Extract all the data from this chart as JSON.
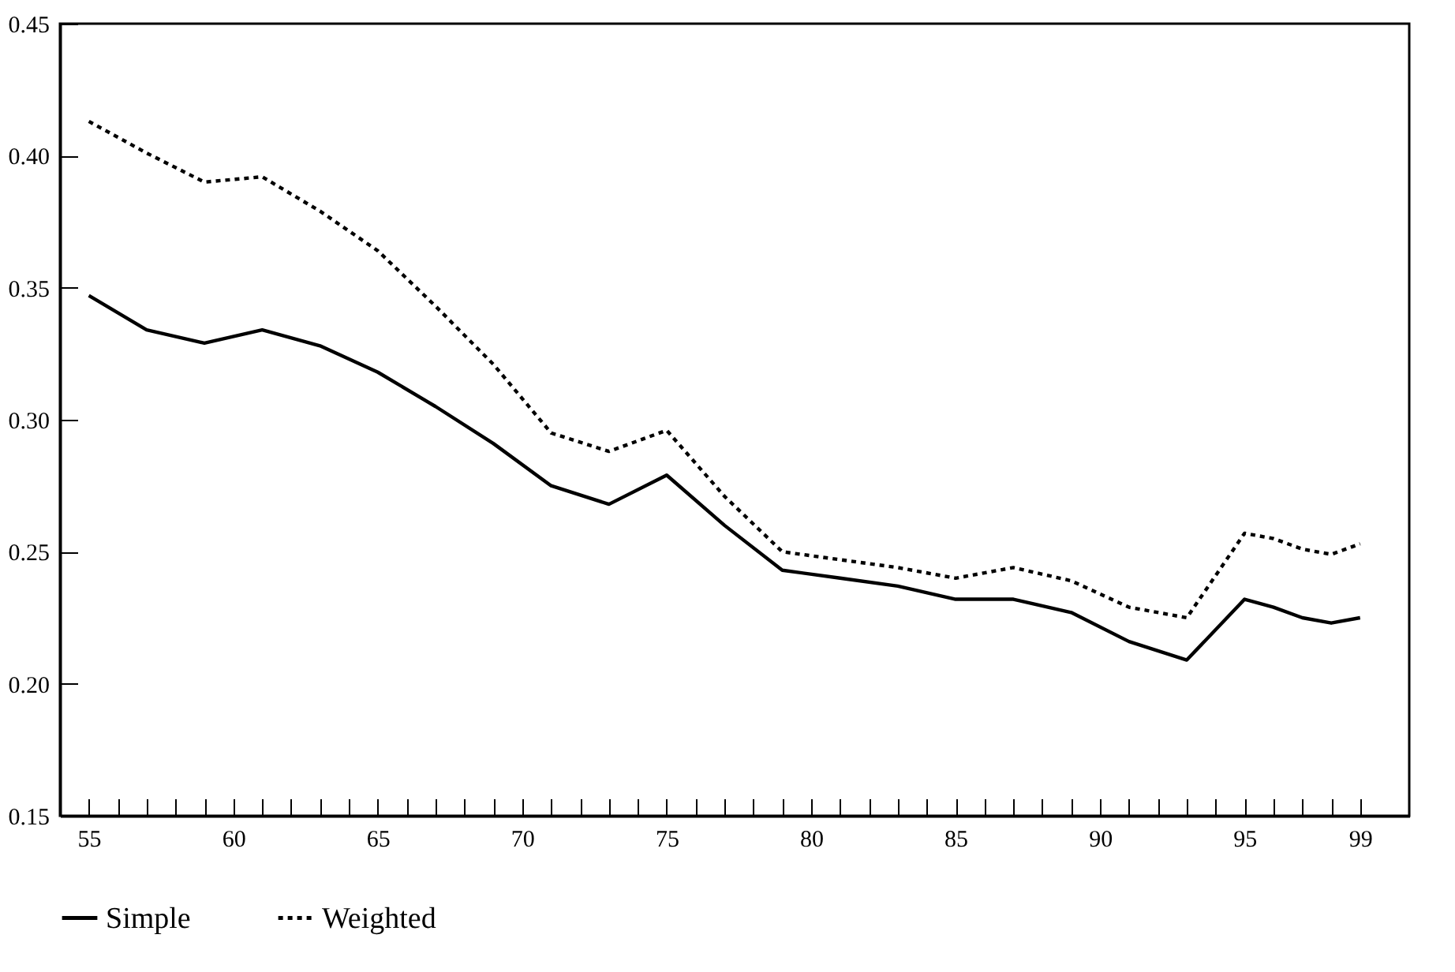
{
  "chart_data": {
    "type": "line",
    "x": [
      55,
      57,
      59,
      61,
      63,
      65,
      67,
      69,
      71,
      73,
      75,
      77,
      79,
      81,
      83,
      85,
      87,
      89,
      91,
      93,
      95,
      96,
      97,
      98,
      99
    ],
    "series": [
      {
        "name": "Simple",
        "color": "#000000",
        "line_style": "solid",
        "values": [
          0.347,
          0.334,
          0.329,
          0.334,
          0.328,
          0.318,
          0.305,
          0.291,
          0.275,
          0.268,
          0.279,
          0.26,
          0.243,
          0.24,
          0.237,
          0.232,
          0.232,
          0.227,
          0.216,
          0.209,
          0.232,
          0.229,
          0.225,
          0.223,
          0.225
        ]
      },
      {
        "name": "Weighted",
        "color": "#000000",
        "line_style": "dotted",
        "values": [
          0.413,
          0.401,
          0.39,
          0.392,
          0.379,
          0.364,
          0.343,
          0.321,
          0.295,
          0.288,
          0.296,
          0.271,
          0.25,
          0.247,
          0.244,
          0.24,
          0.244,
          0.239,
          0.229,
          0.225,
          0.257,
          0.255,
          0.251,
          0.249,
          0.253
        ]
      }
    ],
    "xlim": [
      54,
      100.7
    ],
    "xticks": [
      55,
      {
        "value": 56,
        "label": null
      },
      {
        "value": 57,
        "label": null
      },
      {
        "value": 58,
        "label": null
      },
      {
        "value": 59,
        "label": null
      },
      60,
      {
        "value": 61,
        "label": null
      },
      {
        "value": 62,
        "label": null
      },
      {
        "value": 63,
        "label": null
      },
      {
        "value": 64,
        "label": null
      },
      65,
      {
        "value": 66,
        "label": null
      },
      {
        "value": 67,
        "label": null
      },
      {
        "value": 68,
        "label": null
      },
      {
        "value": 69,
        "label": null
      },
      70,
      {
        "value": 71,
        "label": null
      },
      {
        "value": 72,
        "label": null
      },
      {
        "value": 73,
        "label": null
      },
      {
        "value": 74,
        "label": null
      },
      75,
      {
        "value": 76,
        "label": null
      },
      {
        "value": 77,
        "label": null
      },
      {
        "value": 78,
        "label": null
      },
      {
        "value": 79,
        "label": null
      },
      80,
      {
        "value": 81,
        "label": null
      },
      {
        "value": 82,
        "label": null
      },
      {
        "value": 83,
        "label": null
      },
      {
        "value": 84,
        "label": null
      },
      85,
      {
        "value": 86,
        "label": null
      },
      {
        "value": 87,
        "label": null
      },
      {
        "value": 88,
        "label": null
      },
      {
        "value": 89,
        "label": null
      },
      90,
      {
        "value": 91,
        "label": null
      },
      {
        "value": 92,
        "label": null
      },
      {
        "value": 93,
        "label": null
      },
      {
        "value": 94,
        "label": null
      },
      95,
      {
        "value": 96,
        "label": null
      },
      {
        "value": 97,
        "label": null
      },
      {
        "value": 98,
        "label": null
      },
      99
    ],
    "ylim": [
      0.15,
      0.45
    ],
    "yticks": [
      {
        "value": 0.15,
        "label": "0.15"
      },
      {
        "value": 0.2,
        "label": "0.20"
      },
      {
        "value": 0.25,
        "label": "0.25"
      },
      {
        "value": 0.3,
        "label": "0.30"
      },
      {
        "value": 0.35,
        "label": "0.35"
      },
      {
        "value": 0.4,
        "label": "0.40"
      },
      {
        "value": 0.45,
        "label": "0.45"
      }
    ],
    "legend": "bottom",
    "marker": "none",
    "grid": false
  }
}
